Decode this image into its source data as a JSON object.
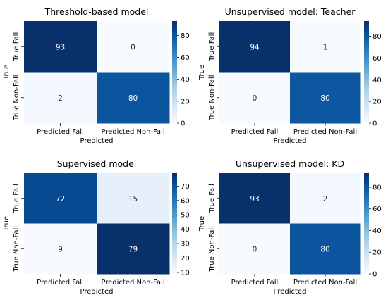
{
  "chart_data": [
    {
      "type": "heatmap",
      "title": "Threshold-based model",
      "xlabel": "Predicted",
      "ylabel": "True",
      "x_categories": [
        "Predicted Fall",
        "Predicted Non-Fall"
      ],
      "y_categories": [
        "True Fall",
        "True Non-Fall"
      ],
      "values": [
        [
          93,
          0
        ],
        [
          2,
          80
        ]
      ],
      "colormap": "Blues",
      "colorbar_range": [
        0,
        93
      ],
      "colorbar_ticks": [
        0,
        20,
        40,
        60,
        80
      ]
    },
    {
      "type": "heatmap",
      "title": "Unsupervised model: Teacher",
      "xlabel": "Predicted",
      "ylabel": "True",
      "x_categories": [
        "Predicted Fall",
        "Predicted Non-Fall"
      ],
      "y_categories": [
        "True Fall",
        "True Non-Fall"
      ],
      "values": [
        [
          94,
          1
        ],
        [
          0,
          80
        ]
      ],
      "colormap": "Blues",
      "colorbar_range": [
        0,
        94
      ],
      "colorbar_ticks": [
        0,
        20,
        40,
        60,
        80
      ]
    },
    {
      "type": "heatmap",
      "title": "Supervised model",
      "xlabel": "Predicted",
      "ylabel": "True",
      "x_categories": [
        "Predicted Fall",
        "Predicted Non-Fall"
      ],
      "y_categories": [
        "True Fall",
        "True Non-Fall"
      ],
      "values": [
        [
          72,
          15
        ],
        [
          9,
          79
        ]
      ],
      "colormap": "Blues",
      "colorbar_range": [
        9,
        79
      ],
      "colorbar_ticks": [
        10,
        20,
        30,
        40,
        50,
        60,
        70
      ]
    },
    {
      "type": "heatmap",
      "title": "Unsupervised model: KD",
      "xlabel": "Predicted",
      "ylabel": "True",
      "x_categories": [
        "Predicted Fall",
        "Predicted Non-Fall"
      ],
      "y_categories": [
        "True Fall",
        "True Non-Fall"
      ],
      "values": [
        [
          93,
          2
        ],
        [
          0,
          80
        ]
      ],
      "colormap": "Blues",
      "colorbar_range": [
        0,
        93
      ],
      "colorbar_ticks": [
        0,
        20,
        40,
        60,
        80
      ]
    }
  ]
}
